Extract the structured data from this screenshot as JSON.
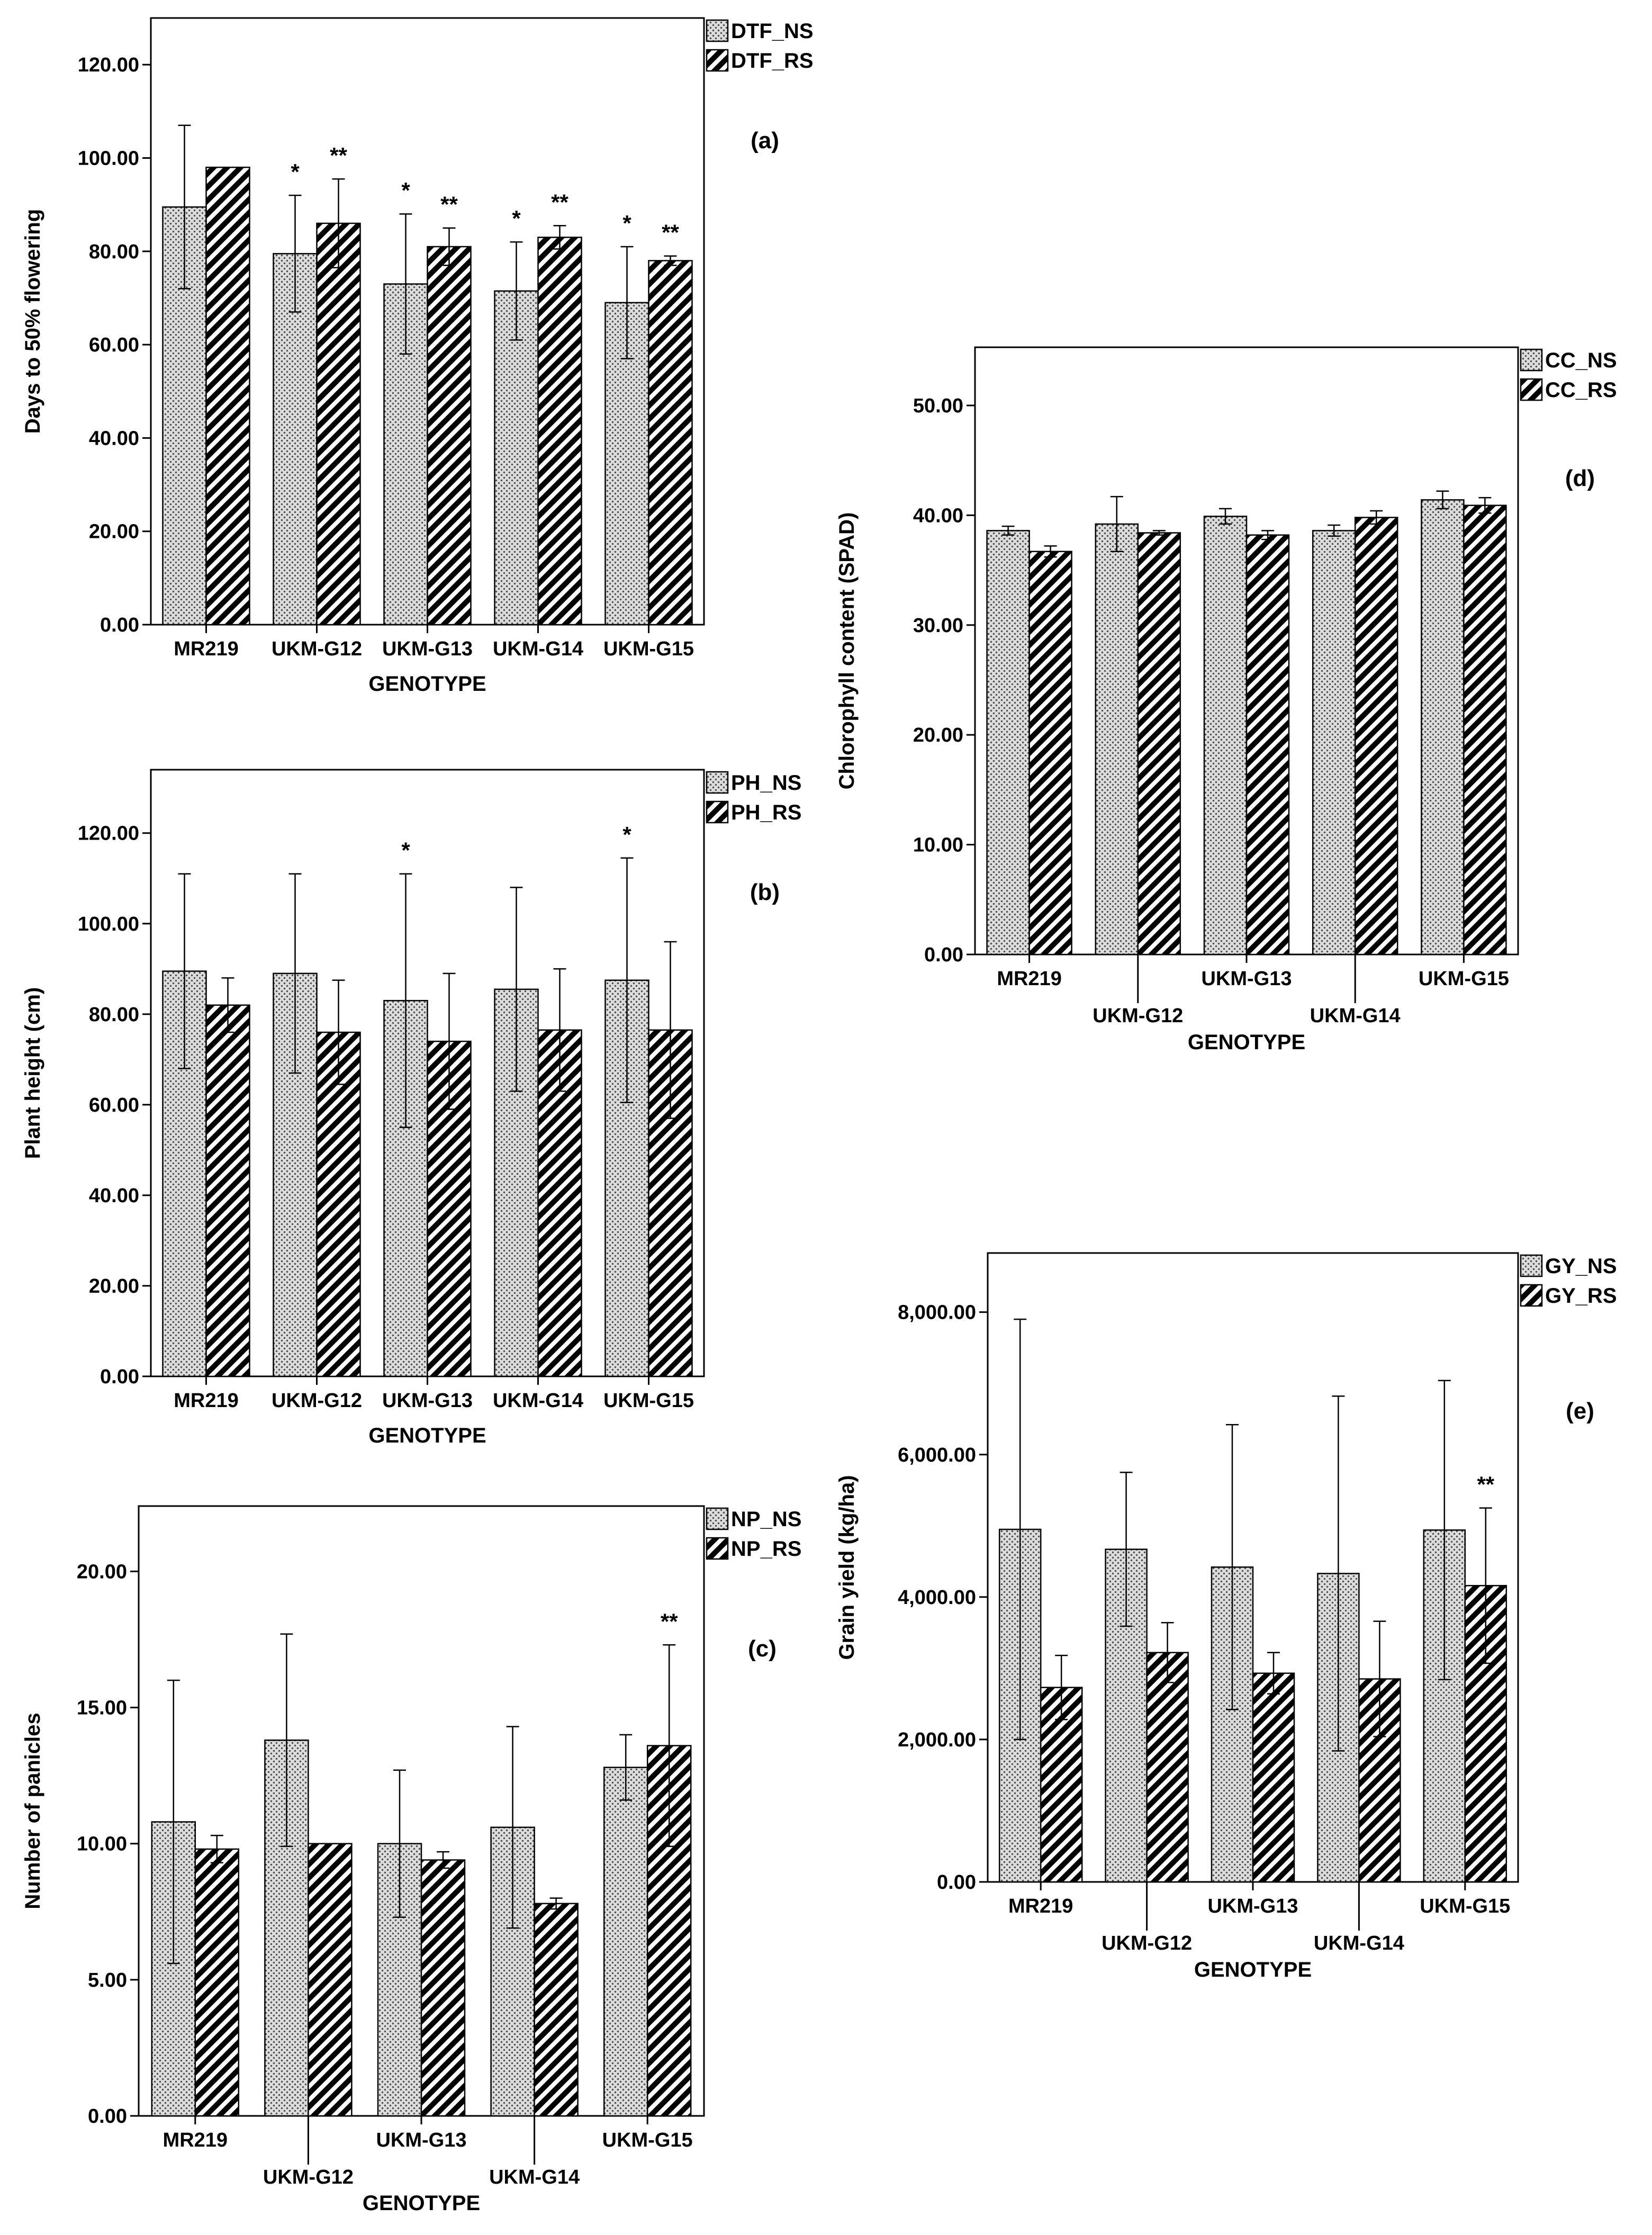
{
  "figure": {
    "genotypes": [
      "MR219",
      "UKM-G12",
      "UKM-G13",
      "UKM-G14",
      "UKM-G15"
    ]
  },
  "chart_data": [
    {
      "id": "a",
      "type": "bar",
      "panel_label": "(a)",
      "xlabel": "GENOTYPE",
      "ylabel": "Days to 50% flowering",
      "categories": [
        "MR219",
        "UKM-G12",
        "UKM-G13",
        "UKM-G14",
        "UKM-G15"
      ],
      "ylim": [
        0,
        130
      ],
      "yticks": [
        0,
        20,
        40,
        60,
        80,
        100,
        120
      ],
      "yticklabels": [
        "0.00",
        "20.00",
        "40.00",
        "60.00",
        "80.00",
        "100.00",
        "120.00"
      ],
      "legend": [
        "DTF_NS",
        "DTF_RS"
      ],
      "series": [
        {
          "name": "DTF_NS",
          "values": [
            89.5,
            79.5,
            73.0,
            71.5,
            69.0
          ],
          "errors": [
            17.5,
            12.5,
            15.0,
            10.5,
            12.0
          ],
          "significance": [
            "",
            "*",
            "*",
            "*",
            "*"
          ]
        },
        {
          "name": "DTF_RS",
          "values": [
            98.0,
            86.0,
            81.0,
            83.0,
            78.0
          ],
          "errors": [
            0.0,
            9.5,
            4.0,
            2.5,
            1.0
          ],
          "significance": [
            "",
            "**",
            "**",
            "**",
            "**"
          ]
        }
      ]
    },
    {
      "id": "b",
      "type": "bar",
      "panel_label": "(b)",
      "xlabel": "GENOTYPE",
      "ylabel": "Plant height (cm)",
      "categories": [
        "MR219",
        "UKM-G12",
        "UKM-G13",
        "UKM-G14",
        "UKM-G15"
      ],
      "ylim": [
        0,
        134
      ],
      "yticks": [
        0,
        20,
        40,
        60,
        80,
        100,
        120
      ],
      "yticklabels": [
        "0.00",
        "20.00",
        "40.00",
        "60.00",
        "80.00",
        "100.00",
        "120.00"
      ],
      "legend": [
        "PH_NS",
        "PH_RS"
      ],
      "series": [
        {
          "name": "PH_NS",
          "values": [
            89.5,
            89.0,
            83.0,
            85.5,
            87.5
          ],
          "errors": [
            21.5,
            22.0,
            28.0,
            22.5,
            27.0
          ],
          "significance": [
            "",
            "",
            "*",
            "",
            "*"
          ]
        },
        {
          "name": "PH_RS",
          "values": [
            82.0,
            76.0,
            74.0,
            76.5,
            76.5
          ],
          "errors": [
            6.0,
            11.5,
            15.0,
            13.5,
            19.5
          ],
          "significance": [
            "",
            "",
            "",
            "",
            ""
          ]
        }
      ]
    },
    {
      "id": "c",
      "type": "bar",
      "panel_label": "(c)",
      "xlabel": "GENOTYPE",
      "ylabel": "Number of panicles",
      "categories": [
        "MR219",
        "UKM-G12",
        "UKM-G13",
        "UKM-G14",
        "UKM-G15"
      ],
      "ylim": [
        0,
        22.4
      ],
      "yticks": [
        0,
        5,
        10,
        15,
        20
      ],
      "yticklabels": [
        "0.00",
        "5.00",
        "10.00",
        "15.00",
        "20.00"
      ],
      "legend": [
        "NP_NS",
        "NP_RS"
      ],
      "series": [
        {
          "name": "NP_NS",
          "values": [
            10.8,
            13.8,
            10.0,
            10.6,
            12.8
          ],
          "errors": [
            5.2,
            3.9,
            2.7,
            3.7,
            1.2
          ],
          "significance": [
            "",
            "",
            "",
            "",
            ""
          ]
        },
        {
          "name": "NP_RS",
          "values": [
            9.8,
            10.0,
            9.4,
            7.8,
            13.6
          ],
          "errors": [
            0.5,
            0.0,
            0.3,
            0.2,
            3.7
          ],
          "significance": [
            "",
            "",
            "",
            "",
            "**"
          ]
        }
      ]
    },
    {
      "id": "d",
      "type": "bar",
      "panel_label": "(d)",
      "xlabel": "GENOTYPE",
      "ylabel": "Chlorophyll content (SPAD)",
      "categories": [
        "MR219",
        "UKM-G12",
        "UKM-G13",
        "UKM-G14",
        "UKM-G15"
      ],
      "ylim": [
        0,
        55.3
      ],
      "yticks": [
        0,
        10,
        20,
        30,
        40,
        50
      ],
      "yticklabels": [
        "0.00",
        "10.00",
        "20.00",
        "30.00",
        "40.00",
        "50.00"
      ],
      "legend": [
        "CC_NS",
        "CC_RS"
      ],
      "series": [
        {
          "name": "CC_NS",
          "values": [
            38.6,
            39.2,
            39.9,
            38.6,
            41.4
          ],
          "errors": [
            0.4,
            2.5,
            0.7,
            0.5,
            0.8
          ],
          "significance": [
            "",
            "",
            "",
            "",
            ""
          ]
        },
        {
          "name": "CC_RS",
          "values": [
            36.7,
            38.4,
            38.2,
            39.8,
            40.9
          ],
          "errors": [
            0.5,
            0.2,
            0.4,
            0.6,
            0.7
          ],
          "significance": [
            "",
            "",
            "",
            "",
            ""
          ]
        }
      ]
    },
    {
      "id": "e",
      "type": "bar",
      "panel_label": "(e)",
      "xlabel": "GENOTYPE",
      "ylabel": "Grain yield (kg/ha)",
      "categories": [
        "MR219",
        "UKM-G12",
        "UKM-G13",
        "UKM-G14",
        "UKM-G15"
      ],
      "ylim": [
        0,
        8830
      ],
      "yticks": [
        0,
        2000,
        4000,
        6000,
        8000
      ],
      "yticklabels": [
        "0.00",
        "2,000.00",
        "4,000.00",
        "6,000.00",
        "8,000.00"
      ],
      "legend": [
        "GY_NS",
        "GY_RS"
      ],
      "series": [
        {
          "name": "GY_NS",
          "values": [
            4950,
            4670,
            4420,
            4330,
            4940
          ],
          "errors": [
            2950,
            1080,
            2000,
            2490,
            2100
          ],
          "significance": [
            "",
            "",
            "",
            "",
            ""
          ]
        },
        {
          "name": "GY_RS",
          "values": [
            2730,
            3220,
            2930,
            2850,
            4160
          ],
          "errors": [
            450,
            420,
            290,
            810,
            1090
          ],
          "significance": [
            "",
            "",
            "",
            "",
            "**"
          ]
        }
      ]
    }
  ]
}
